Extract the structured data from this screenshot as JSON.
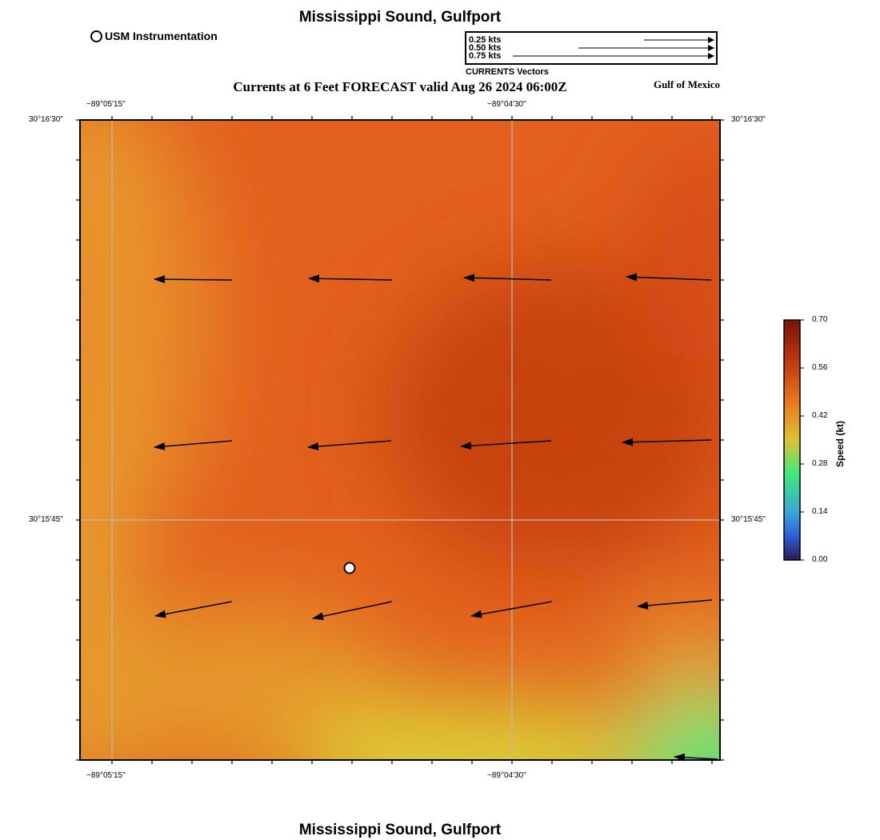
{
  "header": {
    "title": "Mississippi Sound, Gulfport",
    "subtitle": "Currents at 6 Feet FORECAST valid Aug 26 2024 06:00Z",
    "region_label": "Gulf of Mexico"
  },
  "footer": {
    "title": "Mississippi Sound, Gulfport"
  },
  "legend": {
    "usm_label": "USM Instrumentation",
    "vector_scale": [
      "0.25 kts",
      "0.50 kts",
      "0.75 kts"
    ],
    "vector_caption": "CURRENTS Vectors"
  },
  "axes": {
    "lon_ticks": [
      "−89°05'15\"",
      "−89°04'30\""
    ],
    "lat_ticks": [
      "30°16'30\"",
      "30°15'45\""
    ]
  },
  "colorbar": {
    "title": "Speed (kt)",
    "labels": [
      "0.70",
      "0.56",
      "0.42",
      "0.28",
      "0.14",
      "0.00"
    ],
    "colors": [
      "#7a1306",
      "#c23a12",
      "#e8731d",
      "#e0c234",
      "#41e87a",
      "#3aa6d8",
      "#2f5fd6",
      "#2d1a5a"
    ]
  },
  "map_colors": {
    "base": "#e3601e",
    "west_edge": "#e7a533",
    "core": "#c7420f",
    "south_yellow": "#dccf34",
    "southeast_green": "#36ef7f"
  },
  "chart_data": {
    "type": "vector-field",
    "units": "kt",
    "vectors": [
      {
        "row": 1,
        "col": 1,
        "direction": "W"
      },
      {
        "row": 1,
        "col": 2,
        "direction": "W"
      },
      {
        "row": 1,
        "col": 3,
        "direction": "W"
      },
      {
        "row": 1,
        "col": 4,
        "direction": "W"
      },
      {
        "row": 2,
        "col": 1,
        "direction": "W"
      },
      {
        "row": 2,
        "col": 2,
        "direction": "W"
      },
      {
        "row": 2,
        "col": 3,
        "direction": "W"
      },
      {
        "row": 2,
        "col": 4,
        "direction": "W"
      },
      {
        "row": 3,
        "col": 1,
        "direction": "WSW"
      },
      {
        "row": 3,
        "col": 2,
        "direction": "WSW"
      },
      {
        "row": 3,
        "col": 3,
        "direction": "WSW"
      },
      {
        "row": 3,
        "col": 4,
        "direction": "W"
      }
    ],
    "colorbar_range": [
      0.0,
      0.7
    ]
  }
}
